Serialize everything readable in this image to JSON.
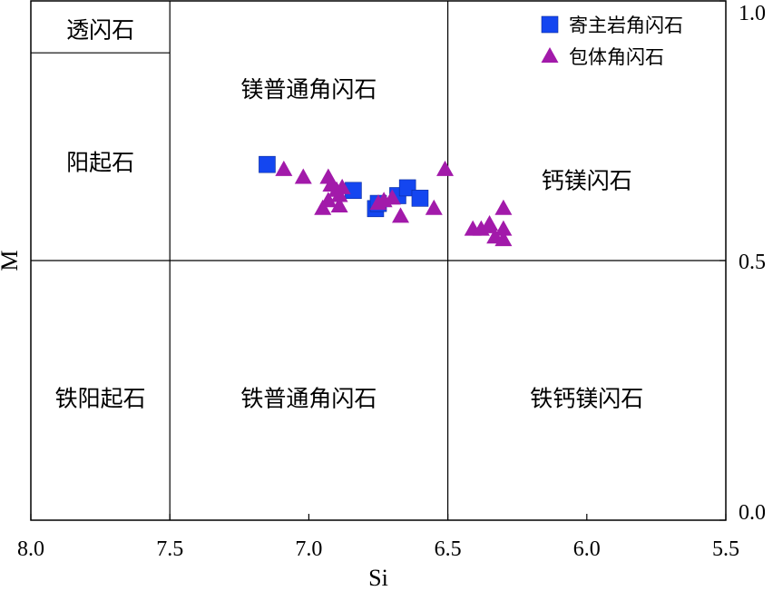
{
  "chart_data": {
    "type": "scatter",
    "xlabel": "Si",
    "ylabel": "M",
    "xlim": [
      8.0,
      5.5
    ],
    "ylim": [
      0.0,
      1.0
    ],
    "x_reversed": true,
    "x_ticks": [
      "8.0",
      "7.5",
      "7.0",
      "6.5",
      "6.0",
      "5.5"
    ],
    "x_tick_values": [
      8.0,
      7.5,
      7.0,
      6.5,
      6.0,
      5.5
    ],
    "y_ticks": [
      "0.0",
      "0.5",
      "1.0"
    ],
    "y_tick_values": [
      0.0,
      0.5,
      1.0
    ],
    "y_axis_side": "right",
    "grid": false,
    "legend_position": "top-right",
    "boundaries": {
      "vertical_si": [
        7.5,
        6.5
      ],
      "horizontal_m": 0.5,
      "tremolite_actinolite_split": {
        "si_from": 8.0,
        "si_to": 7.5,
        "m": 0.9
      }
    },
    "regions": [
      {
        "key": "tremolite",
        "label": "透闪石",
        "si": 7.75,
        "m": 0.945
      },
      {
        "key": "actinolite",
        "label": "阳起石",
        "si": 7.75,
        "m": 0.69
      },
      {
        "key": "mg_hornblende",
        "label": "镁普通角闪石",
        "si": 7.0,
        "m": 0.83
      },
      {
        "key": "tschermakite",
        "label": "钙镁闪石",
        "si": 6.0,
        "m": 0.655
      },
      {
        "key": "ferro_actinolite",
        "label": "铁阳起石",
        "si": 7.75,
        "m": 0.235
      },
      {
        "key": "ferro_hornblende",
        "label": "铁普通角闪石",
        "si": 7.0,
        "m": 0.235
      },
      {
        "key": "ferro_tschermakite",
        "label": "铁钙镁闪石",
        "si": 6.0,
        "m": 0.235
      }
    ],
    "series": [
      {
        "name": "寄主岩角闪石",
        "marker": "square",
        "color": "#1446f0",
        "points": [
          [
            7.15,
            0.685
          ],
          [
            6.84,
            0.635
          ],
          [
            6.76,
            0.6
          ],
          [
            6.75,
            0.61
          ],
          [
            6.68,
            0.625
          ],
          [
            6.645,
            0.64
          ],
          [
            6.6,
            0.62
          ]
        ]
      },
      {
        "name": "包体角闪石",
        "marker": "triangle",
        "color": "#a21aaa",
        "points": [
          [
            7.09,
            0.675
          ],
          [
            7.02,
            0.66
          ],
          [
            6.93,
            0.66
          ],
          [
            6.92,
            0.645
          ],
          [
            6.9,
            0.635
          ],
          [
            6.89,
            0.625
          ],
          [
            6.88,
            0.64
          ],
          [
            6.93,
            0.615
          ],
          [
            6.95,
            0.6
          ],
          [
            6.89,
            0.605
          ],
          [
            6.75,
            0.61
          ],
          [
            6.73,
            0.615
          ],
          [
            6.7,
            0.62
          ],
          [
            6.67,
            0.585
          ],
          [
            6.55,
            0.6
          ],
          [
            6.51,
            0.675
          ],
          [
            6.41,
            0.56
          ],
          [
            6.38,
            0.56
          ],
          [
            6.355,
            0.565
          ],
          [
            6.35,
            0.57
          ],
          [
            6.33,
            0.545
          ],
          [
            6.3,
            0.6
          ],
          [
            6.3,
            0.56
          ],
          [
            6.3,
            0.54
          ]
        ]
      }
    ]
  }
}
